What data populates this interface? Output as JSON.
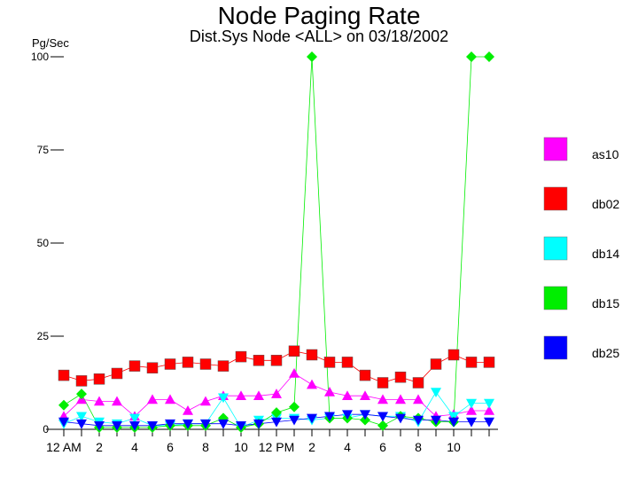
{
  "chart_data": {
    "type": "line",
    "title": "Node Paging Rate",
    "subtitle": "Dist.Sys Node <ALL> on 03/18/2002",
    "ylabel": "Pg/Sec",
    "xlabel": "",
    "ylim": [
      0,
      100
    ],
    "yticks": [
      0,
      25,
      50,
      75,
      100
    ],
    "xticks": [
      "12 AM",
      "2",
      "4",
      "6",
      "8",
      "10",
      "12 PM",
      "2",
      "4",
      "6",
      "8",
      "10"
    ],
    "x": [
      0,
      1,
      2,
      3,
      4,
      5,
      6,
      7,
      8,
      9,
      10,
      11,
      12,
      13,
      14,
      15,
      16,
      17,
      18,
      19,
      20,
      21,
      22,
      23,
      24
    ],
    "grid": false,
    "legend_position": "right",
    "series": [
      {
        "name": "as10",
        "color": "#ff00ff",
        "marker": "triangle-up",
        "values": [
          3.5,
          8,
          7.5,
          7.5,
          3.5,
          8,
          8,
          5,
          7.5,
          9,
          9,
          9,
          9.5,
          15,
          12,
          10,
          9,
          9,
          8,
          8,
          8,
          3.5,
          4,
          5,
          5
        ]
      },
      {
        "name": "db02",
        "color": "#ff0000",
        "marker": "square",
        "values": [
          14.5,
          13,
          13.5,
          15,
          17,
          16.5,
          17.5,
          18,
          17.5,
          17,
          19.5,
          18.5,
          18.5,
          21,
          20,
          18,
          18,
          14.5,
          12.5,
          14,
          12.5,
          17.5,
          20,
          18,
          18
        ]
      },
      {
        "name": "db14",
        "color": "#00ffff",
        "marker": "triangle-down",
        "values": [
          1.5,
          3.5,
          2,
          1.5,
          3,
          1,
          1,
          1.5,
          1.5,
          8.5,
          0.5,
          2.5,
          3,
          3,
          2.5,
          3,
          3,
          4,
          3.5,
          3.5,
          2,
          10,
          3.5,
          7,
          7
        ]
      },
      {
        "name": "db15",
        "color": "#00ee00",
        "marker": "diamond",
        "values": [
          6.5,
          9.5,
          0.5,
          0.5,
          0.5,
          0.5,
          1,
          1,
          1,
          3,
          0.5,
          1.5,
          4.5,
          6,
          100,
          3,
          3,
          2.5,
          1,
          3.5,
          3,
          2,
          2,
          100,
          100
        ]
      },
      {
        "name": "db25",
        "color": "#0000ff",
        "marker": "triangle-down",
        "values": [
          2,
          1.5,
          1,
          1,
          1,
          1,
          1.5,
          1.5,
          1.5,
          1.5,
          1,
          1.5,
          2,
          2.5,
          3,
          3.5,
          4,
          4,
          3.5,
          3,
          2.5,
          2.5,
          2,
          2,
          2
        ]
      }
    ]
  }
}
